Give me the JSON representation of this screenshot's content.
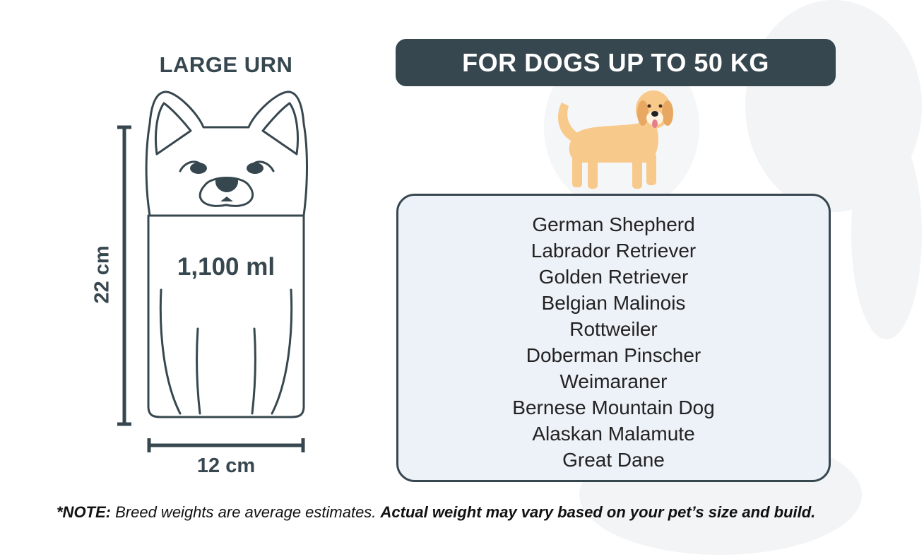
{
  "urn": {
    "title": "LARGE URN",
    "volume": "1,100 ml",
    "height": "22 cm",
    "width": "12 cm",
    "outline_color": "#37474f"
  },
  "banner": {
    "text": "FOR DOGS UP TO 50 KG",
    "color": "#37474f"
  },
  "dog_illustration": {
    "icon": "golden-retriever-illustration",
    "color": "#f7c98b"
  },
  "breeds": [
    "German Shepherd",
    "Labrador Retriever",
    "Golden Retriever",
    "Belgian Malinois",
    "Rottweiler",
    "Doberman Pinscher",
    "Weimaraner",
    "Bernese Mountain Dog",
    "Alaskan Malamute",
    "Great Dane"
  ],
  "note": {
    "prefix": "*NOTE:",
    "text": " Breed weights are average estimates. ",
    "emphasis": "Actual weight may vary based on your pet’s size and build."
  }
}
